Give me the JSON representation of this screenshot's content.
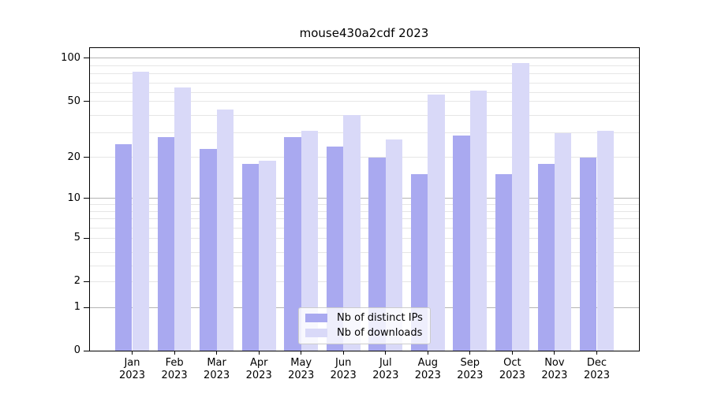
{
  "title": "mouse430a2cdf 2023",
  "chart_data": {
    "type": "bar",
    "title": "mouse430a2cdf 2023",
    "categories": [
      "Jan",
      "Feb",
      "Mar",
      "Apr",
      "May",
      "Jun",
      "Jul",
      "Aug",
      "Sep",
      "Oct",
      "Nov",
      "Dec"
    ],
    "year_label": "2023",
    "series": [
      {
        "name": "Nb of distinct IPs",
        "color": "#a9a9f0",
        "values": [
          25,
          28,
          23,
          18,
          28,
          24,
          20,
          15,
          29,
          15,
          18,
          20
        ]
      },
      {
        "name": "Nb of downloads",
        "color": "#d9d9f8",
        "values": [
          83,
          65,
          44,
          19,
          31,
          40,
          27,
          57,
          62,
          94,
          30,
          31
        ]
      }
    ],
    "xlabel": "",
    "ylabel": "",
    "y_axis": {
      "scale": "symlog-like (linear 0-1, log-like above)",
      "labeled_ticks": [
        {
          "value": 100,
          "label": "100"
        },
        {
          "value": 50,
          "label": "50"
        },
        {
          "value": 20,
          "label": "20"
        },
        {
          "value": 10,
          "label": "10"
        },
        {
          "value": 5,
          "label": "5"
        },
        {
          "value": 2,
          "label": "2"
        },
        {
          "value": 1,
          "label": "1"
        },
        {
          "value": 0,
          "label": "0"
        }
      ],
      "major_gridlines": [
        1,
        10,
        100
      ],
      "minor_gridlines": [
        2,
        3,
        4,
        5,
        6,
        7,
        8,
        9,
        20,
        30,
        40,
        50,
        60,
        70,
        80,
        90
      ],
      "tick_position_anchors": [
        [
          0,
          0.0
        ],
        [
          1,
          0.1429
        ],
        [
          2,
          0.2286
        ],
        [
          3,
          0.2813
        ],
        [
          4,
          0.3247
        ],
        [
          5,
          0.3714
        ],
        [
          6,
          0.406
        ],
        [
          7,
          0.4353
        ],
        [
          8,
          0.4608
        ],
        [
          9,
          0.4831
        ],
        [
          10,
          0.5031
        ],
        [
          20,
          0.639
        ],
        [
          30,
          0.719
        ],
        [
          40,
          0.7782
        ],
        [
          50,
          0.8242
        ],
        [
          60,
          0.8538
        ],
        [
          70,
          0.8839
        ],
        [
          80,
          0.9143
        ],
        [
          90,
          0.9403
        ],
        [
          100,
          0.967
        ]
      ],
      "ylim_top_approx": 117
    },
    "grid": true,
    "legend": {
      "position": "bottom-center"
    },
    "colors": {
      "background": "#ffffff",
      "spine": "#000000",
      "grid_major": "#b4b4b4",
      "grid_minor": "#e6e6e6",
      "text": "#000000",
      "legend_border": "#cccccc"
    }
  }
}
